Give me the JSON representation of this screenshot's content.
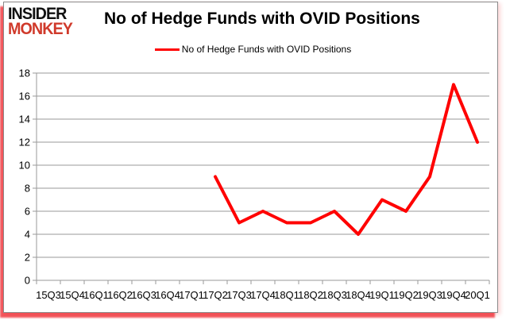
{
  "logo": {
    "line1": "INSIDER",
    "line2": "MONKEY"
  },
  "header": {
    "title": "No of Hedge Funds with OVID Positions"
  },
  "legend": {
    "label": "No of Hedge Funds with OVID Positions"
  },
  "colors": {
    "series_red": "#ff0000",
    "logo_red": "#d03a2b",
    "grid_gray": "#9a9a9a",
    "frame_shadow_red": "#ed1c24"
  },
  "chart_data": {
    "type": "line",
    "title": "No of Hedge Funds with OVID Positions",
    "categories": [
      "15Q3",
      "15Q4",
      "16Q1",
      "16Q2",
      "16Q3",
      "16Q4",
      "17Q1",
      "17Q2",
      "17Q3",
      "17Q4",
      "18Q1",
      "18Q2",
      "18Q3",
      "18Q4",
      "19Q1",
      "19Q2",
      "19Q3",
      "19Q4",
      "20Q1"
    ],
    "series": [
      {
        "name": "No of Hedge Funds with OVID Positions",
        "color": "#ff0000",
        "values": [
          null,
          null,
          null,
          null,
          null,
          null,
          null,
          9,
          5,
          6,
          5,
          5,
          6,
          4,
          7,
          6,
          9,
          17,
          12
        ]
      }
    ],
    "ylim": [
      0,
      18
    ],
    "ytick_step": 2,
    "yticks": [
      0,
      2,
      4,
      6,
      8,
      10,
      12,
      14,
      16,
      18
    ],
    "grid": "horizontal",
    "legend_position": "top-center"
  }
}
